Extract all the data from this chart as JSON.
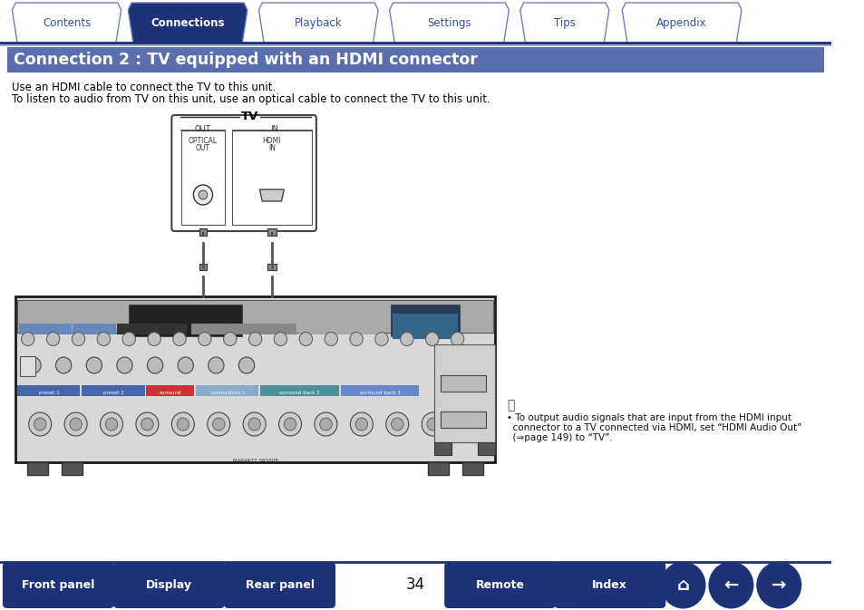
{
  "title": "Connection 2 : TV equipped with an HDMI connector",
  "title_bg": "#5B6EAE",
  "title_color": "#FFFFFF",
  "body_bg": "#FFFFFF",
  "tab_labels": [
    "Contents",
    "Connections",
    "Playback",
    "Settings",
    "Tips",
    "Appendix"
  ],
  "tab_active": 1,
  "tab_active_bg": "#1E3278",
  "tab_inactive_bg": "#FFFFFF",
  "tab_text_color_active": "#FFFFFF",
  "tab_text_color_inactive": "#3A4FA0",
  "tab_border_color": "#7080B8",
  "nav_button_bg_left": "#1E3278",
  "nav_button_bg_right": "#1E3278",
  "nav_button_text": "#FFFFFF",
  "page_number": "34",
  "desc_line1": "Use an HDMI cable to connect the TV to this unit.",
  "desc_line2": "To listen to audio from TV on this unit, use an optical cable to connect the TV to this unit.",
  "note_text_line1": "• To output audio signals that are input from the HDMI input",
  "note_text_line2": "  connector to a TV connected via HDMI, set “HDMI Audio Out”",
  "note_text_line3": "  (⇒page 149) to “TV”.",
  "divider_color": "#1E3278",
  "bottom_sep_color": "#1E3278"
}
